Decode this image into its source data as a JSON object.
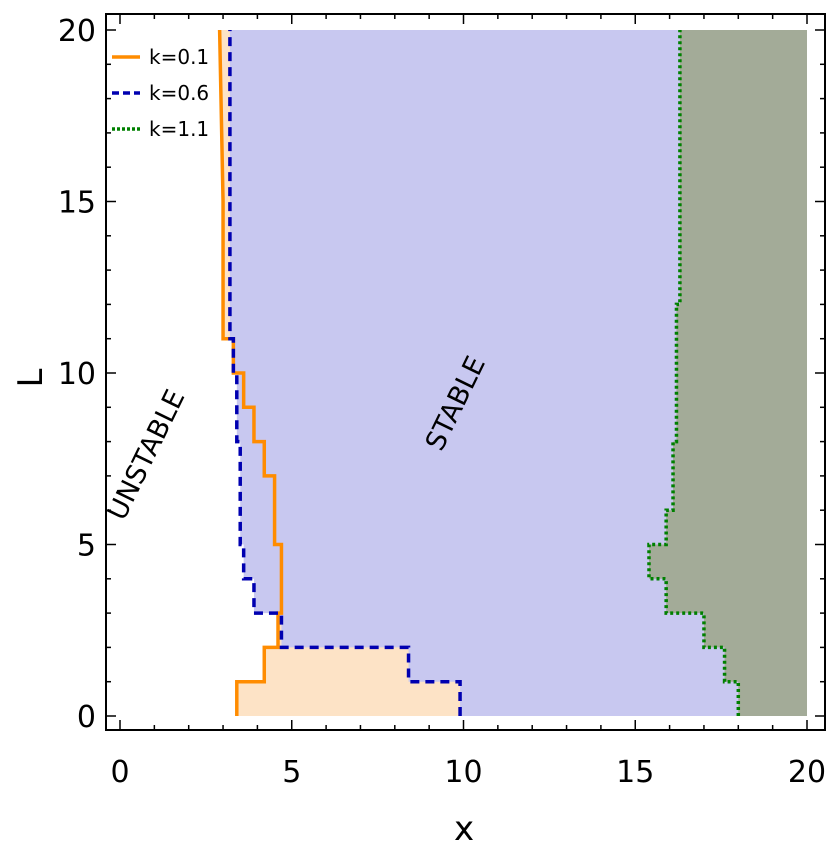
{
  "chart_data": {
    "type": "line",
    "xlabel": "x",
    "ylabel": "L",
    "xlim": [
      0,
      20
    ],
    "ylim": [
      0,
      20
    ],
    "xticks": [
      0,
      5,
      10,
      15,
      20
    ],
    "yticks": [
      0,
      5,
      10,
      15,
      20
    ],
    "legend_position": "top-left",
    "series": [
      {
        "name": "k=0.1",
        "color": "#ff8c00",
        "fill": "#fde3c6",
        "style": "solid",
        "x": [
          3.4,
          3.4,
          4.2,
          4.2,
          4.6,
          4.6,
          4.7,
          4.7,
          4.5,
          4.5,
          4.2,
          4.2,
          3.9,
          3.9,
          3.6,
          3.6,
          3.3,
          3.3,
          3.0,
          3.0,
          2.9
        ],
        "y": [
          0,
          1,
          1,
          2,
          2,
          3,
          3,
          5,
          5,
          7,
          7,
          8,
          8,
          9,
          9,
          10,
          10,
          11,
          11,
          15,
          20
        ]
      },
      {
        "name": "k=0.6",
        "color": "#0000b0",
        "fill": "#c8c8f0",
        "style": "dashed",
        "x": [
          9.9,
          9.9,
          8.4,
          8.4,
          4.7,
          4.7,
          3.9,
          3.9,
          3.6,
          3.6,
          3.5,
          3.5,
          3.4,
          3.4,
          3.3,
          3.3,
          3.2,
          3.2
        ],
        "y": [
          0,
          1,
          1,
          2,
          2,
          3,
          3,
          4,
          4,
          5,
          5,
          8,
          8,
          10,
          10,
          11,
          11,
          20
        ]
      },
      {
        "name": "k=1.1",
        "color": "#008000",
        "fill": "#a3ab98",
        "style": "dotted",
        "x": [
          18.0,
          18.0,
          17.6,
          17.6,
          17.0,
          17.0,
          15.9,
          15.9,
          15.4,
          15.4,
          15.9,
          15.9,
          16.1,
          16.1,
          16.2,
          16.2,
          16.3,
          16.3
        ],
        "y": [
          0,
          1,
          1,
          2,
          2,
          3,
          3,
          4,
          4,
          5,
          5,
          6,
          6,
          8,
          8,
          12,
          12,
          20
        ]
      }
    ],
    "annotations": [
      {
        "text": "UNSTABLE",
        "x": 1.0,
        "y": 7.5,
        "rotation": -64
      },
      {
        "text": "STABLE",
        "x": 10.0,
        "y": 9.0,
        "rotation": -64
      }
    ]
  }
}
